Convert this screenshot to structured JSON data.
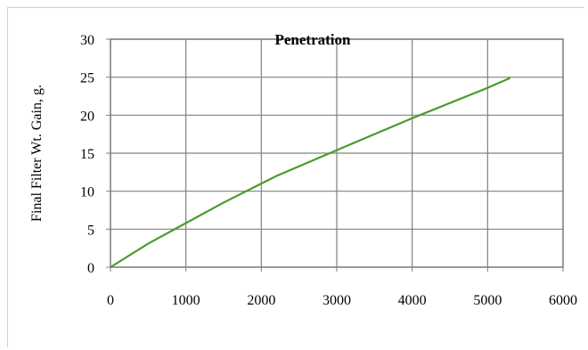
{
  "chart_data": {
    "type": "line",
    "title": "Penetration",
    "xlabel": "",
    "ylabel": "Final Filter Wt. Gain, g.",
    "xlim": [
      0,
      6000
    ],
    "ylim": [
      0,
      30
    ],
    "x_ticks": [
      0,
      1000,
      2000,
      3000,
      4000,
      5000,
      6000
    ],
    "y_ticks": [
      0,
      5,
      10,
      15,
      20,
      25,
      30
    ],
    "grid": true,
    "legend": "none",
    "series": [
      {
        "color": "#4a9a2e",
        "x": [
          0,
          500,
          1000,
          1500,
          2000,
          2200,
          3000,
          4000,
          5000,
          5300
        ],
        "y": [
          0,
          3.1,
          5.8,
          8.5,
          11.0,
          12.0,
          15.4,
          19.6,
          23.6,
          24.9
        ]
      }
    ]
  }
}
